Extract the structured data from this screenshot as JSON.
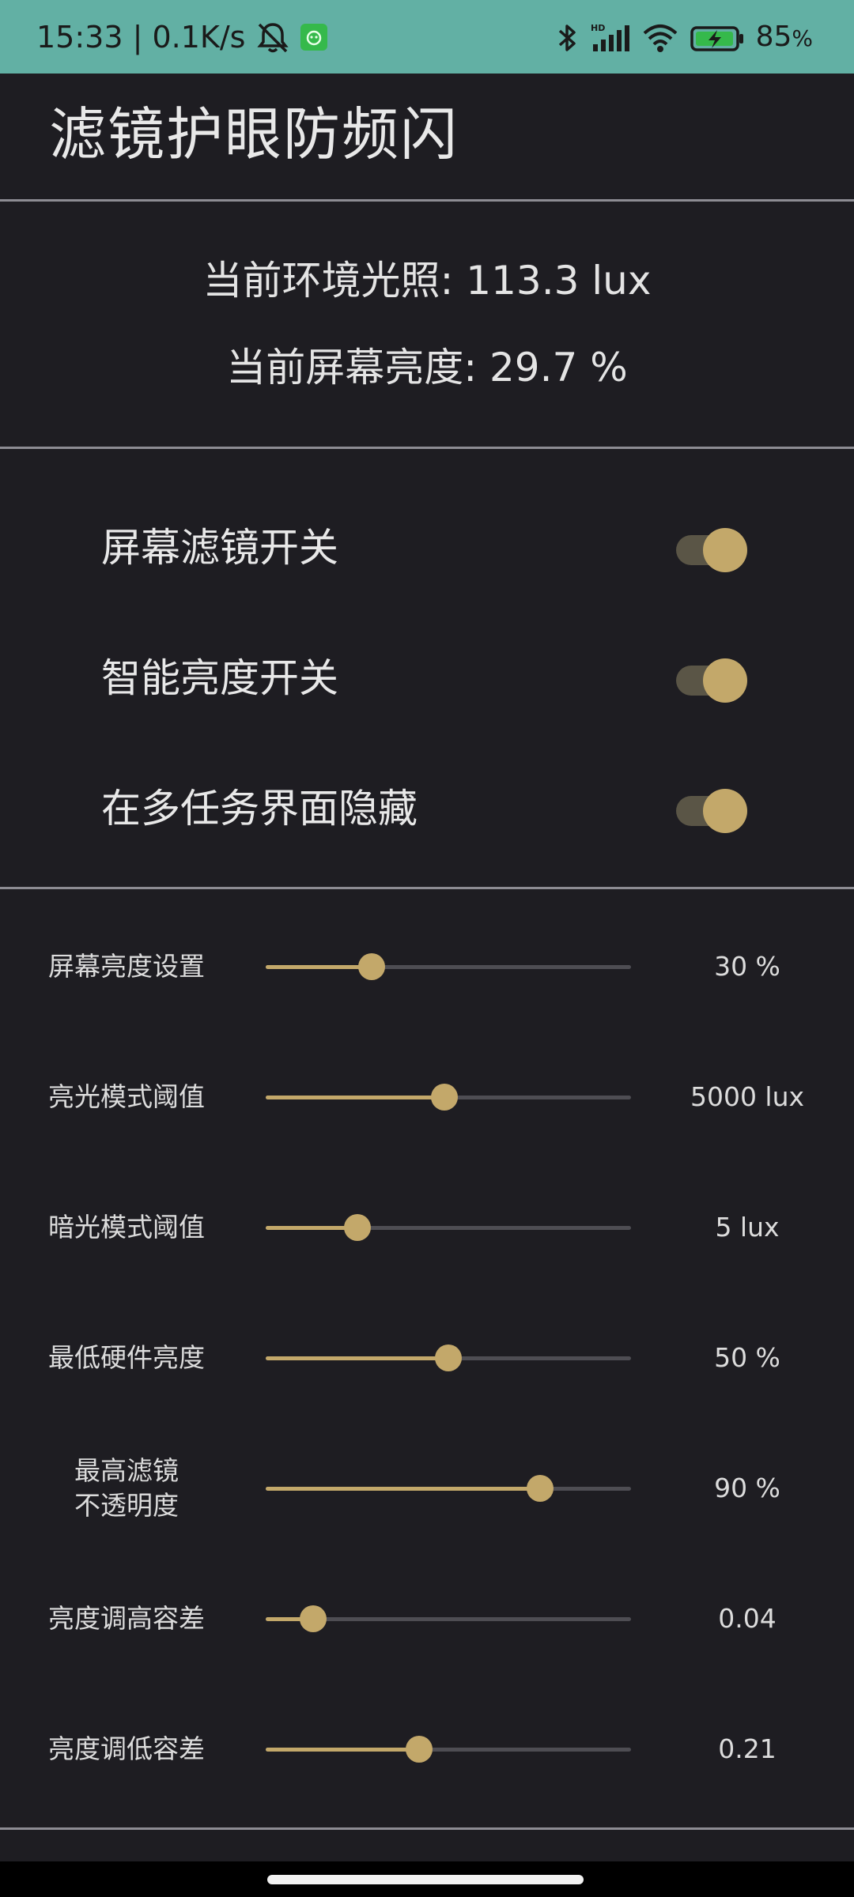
{
  "status_bar": {
    "time_speed": "15:33 | 0.1K/s",
    "battery_percent": "85",
    "battery_unit": "%",
    "icons": [
      "mute-bell-icon",
      "app-badge-icon",
      "bluetooth-icon",
      "hd-signal-icon",
      "wifi-icon",
      "battery-charging-icon"
    ],
    "signal_label": "HD"
  },
  "header": {
    "title": "滤镜护眼防频闪"
  },
  "info": {
    "ambient_light": "当前环境光照: 113.3 lux",
    "screen_brightness": "当前屏幕亮度: 29.7 %"
  },
  "switches": [
    {
      "label": "屏幕滤镜开关",
      "on": true
    },
    {
      "label": "智能亮度开关",
      "on": true
    },
    {
      "label": "在多任务界面隐藏",
      "on": true
    }
  ],
  "sliders": [
    {
      "label": "屏幕亮度设置",
      "value": "30 %",
      "level": 0.29
    },
    {
      "label": "亮光模式阈值",
      "value": "5000 lux",
      "level": 0.49
    },
    {
      "label": "暗光模式阈值",
      "value": "5 lux",
      "level": 0.25
    },
    {
      "label": "最低硬件亮度",
      "value": "50 %",
      "level": 0.5
    },
    {
      "label": "最高滤镜\n不透明度",
      "value": "90 %",
      "level": 0.75
    },
    {
      "label": "亮度调高容差",
      "value": "0.04",
      "level": 0.13
    },
    {
      "label": "亮度调低容差",
      "value": "0.21",
      "level": 0.42
    }
  ],
  "colors": {
    "status_bar": "#62b0a4",
    "background": "#1e1d22",
    "accent": "#c3a86a",
    "divider": "#8d8c93"
  }
}
